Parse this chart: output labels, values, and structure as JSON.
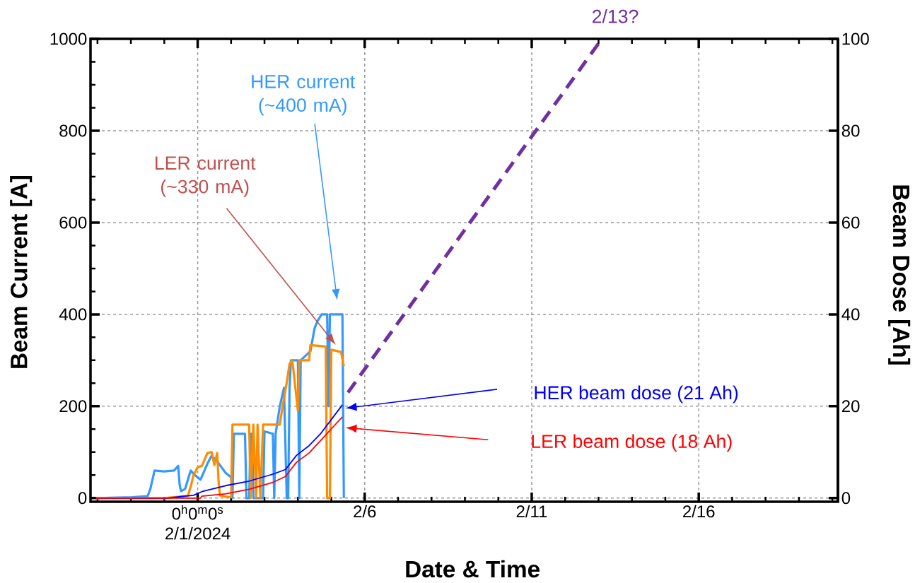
{
  "chart_data": {
    "type": "line",
    "xlabel": "Date & Time",
    "ylabel": "Beam Current [A]",
    "y2label": "Beam Dose [Ah]",
    "xlim": [
      "2024-01-28T19:00",
      "2024-02-20T04:00"
    ],
    "xticks": [
      {
        "value": "2024-01-29",
        "label": null
      },
      {
        "value": "2024-01-30",
        "label": null
      },
      {
        "value": "2024-01-31",
        "label": null
      },
      {
        "value": "2024-02-01",
        "label": "0$^{h}$0$^{m}$0$^{s}$ 2/1/2024"
      },
      {
        "value": "2024-02-02",
        "label": null
      },
      {
        "value": "2024-02-03",
        "label": null
      },
      {
        "value": "2024-02-04",
        "label": null
      },
      {
        "value": "2024-02-05",
        "label": null
      },
      {
        "value": "2024-02-06",
        "label": "2/6"
      },
      {
        "value": "2024-02-07",
        "label": null
      },
      {
        "value": "2024-02-08",
        "label": null
      },
      {
        "value": "2024-02-09",
        "label": null
      },
      {
        "value": "2024-02-10",
        "label": null
      },
      {
        "value": "2024-02-11",
        "label": "2/11"
      },
      {
        "value": "2024-02-12",
        "label": null
      },
      {
        "value": "2024-02-13",
        "label": null
      },
      {
        "value": "2024-02-14",
        "label": null
      },
      {
        "value": "2024-02-15",
        "label": null
      },
      {
        "value": "2024-02-16",
        "label": "2/16"
      },
      {
        "value": "2024-02-17",
        "label": null
      },
      {
        "value": "2024-02-18",
        "label": null
      },
      {
        "value": "2024-02-19",
        "label": null
      },
      {
        "value": "2024-02-20",
        "label": null
      }
    ],
    "ylim": [
      -8,
      1000
    ],
    "yticks": [
      0,
      {
        "value": 50,
        "label": null
      },
      {
        "value": 100,
        "label": null
      },
      {
        "value": 150,
        "label": null
      },
      200,
      {
        "value": 250,
        "label": null
      },
      {
        "value": 300,
        "label": null
      },
      {
        "value": 350,
        "label": null
      },
      400,
      {
        "value": 450,
        "label": null
      },
      {
        "value": 500,
        "label": null
      },
      {
        "value": 550,
        "label": null
      },
      600,
      {
        "value": 650,
        "label": null
      },
      {
        "value": 700,
        "label": null
      },
      {
        "value": 750,
        "label": null
      },
      800,
      {
        "value": 850,
        "label": null
      },
      {
        "value": 900,
        "label": null
      },
      {
        "value": 950,
        "label": null
      },
      1000
    ],
    "y2lim": [
      -0.8,
      100
    ],
    "y2ticks": [
      0,
      20,
      40,
      60,
      80,
      100
    ],
    "grid": true,
    "series": [
      {
        "color": "#3399ff",
        "x": [
          "2024-01-28T23:00",
          "2024-01-30T01:00",
          "2024-01-30T12:00",
          "2024-01-30T14:00",
          "2024-01-30T17:00",
          "2024-01-31T00:00",
          "2024-01-31T07:00",
          "2024-01-31T10:00",
          "2024-01-31T11:00",
          "2024-01-31T12:00",
          "2024-01-31T15:00",
          "2024-01-31T19:00",
          "2024-01-31T22:00",
          "2024-02-01T02:00",
          "2024-02-01T07:00",
          "2024-02-01T10:00",
          "2024-02-01T14:00",
          "2024-02-01T20:00",
          "2024-02-02T00:00",
          "2024-02-02T01:00",
          "2024-02-02T02:00",
          "2024-02-02T10:00",
          "2024-02-02T11:00",
          "2024-02-02T13:00",
          "2024-02-02T14:00",
          "2024-02-02T15:00",
          "2024-02-02T16:00",
          "2024-02-02T23:00",
          "2024-02-03T00:00",
          "2024-02-03T06:00",
          "2024-02-03T07:00",
          "2024-02-03T08:00",
          "2024-02-03T11:00",
          "2024-02-03T14:00",
          "2024-02-03T16:00",
          "2024-02-03T17:00",
          "2024-02-03T18:00",
          "2024-02-03T19:00",
          "2024-02-04T00:00",
          "2024-02-04T01:00",
          "2024-02-04T02:00",
          "2024-02-04T09:00",
          "2024-02-04T12:00",
          "2024-02-04T14:00",
          "2024-02-04T17:00",
          "2024-02-04T21:00",
          "2024-02-04T22:00",
          "2024-02-04T23:00",
          "2024-02-05T08:00",
          "2024-02-05T09:00"
        ],
        "values": [
          0,
          2,
          4,
          20,
          60,
          58,
          60,
          70,
          30,
          15,
          20,
          60,
          50,
          40,
          75,
          92,
          80,
          55,
          45,
          0,
          140,
          140,
          0,
          0,
          140,
          140,
          0,
          0,
          145,
          140,
          0,
          140,
          200,
          240,
          0,
          0,
          240,
          300,
          300,
          0,
          300,
          320,
          370,
          385,
          400,
          400,
          200,
          400,
          400,
          0
        ]
      },
      {
        "color": "#ff8c00",
        "x": [
          "2024-01-28T23:00",
          "2024-01-31T00:00",
          "2024-01-31T17:00",
          "2024-01-31T19:00",
          "2024-01-31T21:00",
          "2024-02-01T00:00",
          "2024-02-01T03:00",
          "2024-02-01T07:00",
          "2024-02-01T10:00",
          "2024-02-01T12:00",
          "2024-02-01T14:00",
          "2024-02-01T15:00",
          "2024-02-01T16:00",
          "2024-02-01T20:00",
          "2024-02-02T00:00",
          "2024-02-02T01:00",
          "2024-02-02T13:00",
          "2024-02-02T14:00",
          "2024-02-02T16:00",
          "2024-02-02T18:00",
          "2024-02-02T19:00",
          "2024-02-02T21:00",
          "2024-02-02T23:00",
          "2024-02-03T11:00",
          "2024-02-03T13:00",
          "2024-02-03T16:00",
          "2024-02-03T18:00",
          "2024-02-03T20:00",
          "2024-02-04T00:00",
          "2024-02-04T01:00",
          "2024-02-04T08:00",
          "2024-02-04T09:00",
          "2024-02-04T16:00",
          "2024-02-04T20:00",
          "2024-02-04T21:00",
          "2024-02-04T23:00",
          "2024-02-05T00:00",
          "2024-02-05T07:00",
          "2024-02-05T09:00"
        ],
        "values": [
          0,
          0,
          5,
          25,
          50,
          67,
          70,
          98,
          100,
          72,
          98,
          37,
          6,
          3,
          2,
          160,
          160,
          0,
          160,
          0,
          160,
          0,
          160,
          160,
          200,
          252,
          292,
          300,
          190,
          300,
          300,
          333,
          331,
          330,
          0,
          0,
          323,
          318,
          287
        ]
      },
      {
        "color": "#0000ff",
        "axis": "y2",
        "x": [
          "2024-01-28T23:00",
          "2024-01-31T02:00",
          "2024-01-31T21:00",
          "2024-02-01T03:00",
          "2024-02-01T20:00",
          "2024-02-02T13:00",
          "2024-02-03T06:00",
          "2024-02-03T15:00",
          "2024-02-03T23:00",
          "2024-02-04T08:00",
          "2024-02-04T16:00",
          "2024-02-05T01:00",
          "2024-02-05T08:00"
        ],
        "values": [
          0,
          0,
          0.6,
          1.4,
          2.7,
          3.7,
          5.2,
          6.2,
          9.3,
          11.4,
          13.9,
          17.5,
          20.3
        ]
      },
      {
        "color": "#ff0000",
        "axis": "y2",
        "x": [
          "2024-01-28T23:00",
          "2024-02-01T02:00",
          "2024-02-01T03:00",
          "2024-02-01T20:00",
          "2024-02-02T13:00",
          "2024-02-03T06:00",
          "2024-02-03T15:00",
          "2024-02-03T23:00",
          "2024-02-04T08:00",
          "2024-02-04T16:00",
          "2024-02-05T01:00",
          "2024-02-05T08:00"
        ],
        "values": [
          0,
          0,
          0.4,
          0.9,
          1.9,
          3.4,
          4.7,
          7.8,
          9.8,
          12.4,
          15.4,
          17.7
        ]
      },
      {
        "color": "#7030a0",
        "axis": "y2",
        "line_style": "dashed",
        "x": [
          "2024-02-05T12:00",
          "2024-02-13T00:00"
        ],
        "values": [
          23,
          99
        ]
      }
    ],
    "annotations": [
      "2/13?",
      "HER current (~400 mA)",
      "LER current (~330 mA)",
      "HER beam dose (21 Ah)",
      "LER beam dose (18 Ah)"
    ]
  }
}
